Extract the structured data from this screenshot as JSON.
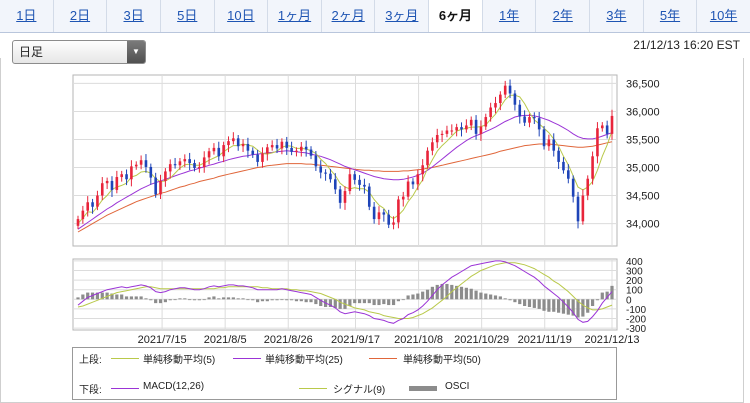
{
  "tabs": [
    {
      "label": "1日",
      "active": false
    },
    {
      "label": "2日",
      "active": false
    },
    {
      "label": "3日",
      "active": false
    },
    {
      "label": "5日",
      "active": false
    },
    {
      "label": "10日",
      "active": false
    },
    {
      "label": "1ヶ月",
      "active": false
    },
    {
      "label": "2ヶ月",
      "active": false
    },
    {
      "label": "3ヶ月",
      "active": false
    },
    {
      "label": "6ヶ月",
      "active": true
    },
    {
      "label": "1年",
      "active": false
    },
    {
      "label": "2年",
      "active": false
    },
    {
      "label": "3年",
      "active": false
    },
    {
      "label": "5年",
      "active": false
    },
    {
      "label": "10年",
      "active": false
    }
  ],
  "chart_type_select": {
    "value": "日足"
  },
  "timestamp": "21/12/13 16:20 EST",
  "legend": {
    "upper_label": "上段:",
    "lower_label": "下段:",
    "upper": [
      {
        "label": "単純移動平均(5)",
        "color": "#b9c94a"
      },
      {
        "label": "単純移動平均(25)",
        "color": "#9b34d6"
      },
      {
        "label": "単純移動平均(50)",
        "color": "#e0663a"
      }
    ],
    "lower": [
      {
        "label": "MACD(12,26)",
        "color": "#9b34d6"
      },
      {
        "label": "シグナル(9)",
        "color": "#b9c94a"
      },
      {
        "label": "OSCI",
        "color": "#8c8c8c"
      }
    ]
  },
  "chart_data": [
    {
      "type": "candlestick",
      "panel": "price",
      "ylim": [
        33600,
        36650
      ],
      "y_ticks": [
        "36,500",
        "36,000",
        "35,500",
        "35,000",
        "34,500",
        "34,000"
      ],
      "y_tick_values": [
        36500,
        36000,
        35500,
        35000,
        34500,
        34000
      ],
      "up_color": "#e8243a",
      "down_color": "#1e44b8",
      "x_labels": [
        "2021/7/15",
        "2021/8/5",
        "2021/8/26",
        "2021/9/17",
        "2021/10/8",
        "2021/10/29",
        "2021/11/19",
        "2021/12/13"
      ],
      "closes": [
        34080,
        34230,
        34380,
        34300,
        34500,
        34720,
        34760,
        34600,
        34830,
        34880,
        34790,
        35020,
        35050,
        35130,
        35010,
        34820,
        34520,
        34760,
        34930,
        35060,
        35040,
        35110,
        35150,
        35080,
        34990,
        35010,
        35180,
        35290,
        35350,
        35200,
        35400,
        35470,
        35520,
        35380,
        35420,
        35300,
        35230,
        35100,
        35250,
        35360,
        35400,
        35340,
        35460,
        35350,
        35280,
        35300,
        35370,
        35320,
        35210,
        35020,
        34910,
        34890,
        34790,
        34610,
        34370,
        34580,
        34880,
        34780,
        34690,
        34660,
        34300,
        34080,
        34200,
        34160,
        33980,
        34020,
        34430,
        34480,
        34750,
        34700,
        34880,
        35040,
        35300,
        35450,
        35580,
        35600,
        35660,
        35660,
        35720,
        35680,
        35750,
        35850,
        35600,
        35730,
        35900,
        36070,
        36150,
        36300,
        36460,
        36320,
        36120,
        35910,
        35800,
        35900,
        35880,
        35680,
        35380,
        35500,
        35300,
        35100,
        34950,
        34800,
        34480,
        34040,
        34500,
        34800,
        35200,
        35700,
        35750,
        35600,
        35920
      ],
      "sma5": [
        34000,
        34100,
        34210,
        34200,
        34300,
        34420,
        34500,
        34610,
        34650,
        34680,
        34720,
        34830,
        34860,
        34920,
        34930,
        34900,
        34800,
        34750,
        34760,
        34810,
        34900,
        34990,
        35050,
        35060,
        35040,
        35040,
        35080,
        35130,
        35170,
        35210,
        35280,
        35340,
        35390,
        35390,
        35420,
        35400,
        35380,
        35310,
        35250,
        35240,
        35260,
        35290,
        35360,
        35390,
        35380,
        35340,
        35340,
        35330,
        35300,
        35250,
        35150,
        35070,
        34960,
        34860,
        34720,
        34650,
        34620,
        34640,
        34620,
        34620,
        34560,
        34430,
        34330,
        34270,
        34140,
        34090,
        34150,
        34240,
        34390,
        34500,
        34650,
        34780,
        34980,
        35140,
        35290,
        35390,
        35470,
        35560,
        35650,
        35680,
        35700,
        35720,
        35720,
        35730,
        35760,
        35860,
        35950,
        36080,
        36210,
        36290,
        36290,
        36260,
        36140,
        35980,
        35850,
        35780,
        35700,
        35620,
        35510,
        35380,
        35200,
        35050,
        34850,
        34650,
        34600,
        34650,
        34750,
        34950,
        35200,
        35400,
        35650
      ],
      "sma25": [
        33900,
        33960,
        34020,
        34080,
        34140,
        34200,
        34260,
        34310,
        34370,
        34420,
        34470,
        34520,
        34570,
        34620,
        34660,
        34700,
        34730,
        34760,
        34790,
        34820,
        34850,
        34880,
        34910,
        34940,
        34960,
        34990,
        35010,
        35040,
        35060,
        35090,
        35110,
        35140,
        35160,
        35180,
        35200,
        35210,
        35230,
        35240,
        35250,
        35260,
        35270,
        35280,
        35290,
        35300,
        35290,
        35280,
        35270,
        35260,
        35240,
        35220,
        35200,
        35170,
        35140,
        35100,
        35060,
        35020,
        34990,
        34960,
        34930,
        34900,
        34870,
        34840,
        34820,
        34800,
        34790,
        34780,
        34780,
        34790,
        34810,
        34830,
        34860,
        34900,
        34950,
        35010,
        35080,
        35150,
        35220,
        35290,
        35360,
        35420,
        35480,
        35530,
        35570,
        35600,
        35640,
        35680,
        35720,
        35770,
        35820,
        35860,
        35900,
        35920,
        35930,
        35930,
        35920,
        35900,
        35870,
        35840,
        35800,
        35760,
        35710,
        35660,
        35600,
        35550,
        35520,
        35510,
        35510,
        35530,
        35560,
        35590,
        35620
      ],
      "sma50": [
        33850,
        33900,
        33950,
        34000,
        34050,
        34100,
        34150,
        34190,
        34230,
        34270,
        34310,
        34350,
        34390,
        34420,
        34450,
        34480,
        34510,
        34540,
        34560,
        34590,
        34620,
        34650,
        34670,
        34700,
        34720,
        34750,
        34770,
        34790,
        34810,
        34840,
        34860,
        34880,
        34900,
        34920,
        34940,
        34960,
        34980,
        35000,
        35010,
        35030,
        35040,
        35050,
        35060,
        35070,
        35070,
        35070,
        35070,
        35060,
        35060,
        35050,
        35040,
        35030,
        35020,
        35010,
        35000,
        34990,
        34980,
        34970,
        34960,
        34950,
        34950,
        34940,
        34940,
        34930,
        34930,
        34930,
        34930,
        34940,
        34940,
        34950,
        34960,
        34970,
        34990,
        35000,
        35020,
        35040,
        35060,
        35080,
        35100,
        35120,
        35140,
        35160,
        35180,
        35200,
        35220,
        35240,
        35260,
        35290,
        35310,
        35330,
        35350,
        35370,
        35390,
        35400,
        35410,
        35420,
        35420,
        35420,
        35410,
        35400,
        35390,
        35380,
        35370,
        35360,
        35360,
        35370,
        35380,
        35400,
        35420,
        35440,
        35460
      ]
    },
    {
      "type": "macd",
      "panel": "oscillator",
      "ylim": [
        -320,
        420
      ],
      "y_ticks": [
        "400",
        "300",
        "200",
        "100",
        "0",
        "-100",
        "-200",
        "-300"
      ],
      "y_tick_values": [
        400,
        300,
        200,
        100,
        0,
        -100,
        -200,
        -300
      ],
      "macd": [
        -60,
        -20,
        20,
        40,
        60,
        80,
        100,
        110,
        120,
        130,
        120,
        130,
        140,
        150,
        140,
        120,
        80,
        70,
        80,
        100,
        110,
        120,
        120,
        110,
        100,
        100,
        110,
        130,
        140,
        130,
        140,
        150,
        150,
        140,
        140,
        130,
        120,
        100,
        100,
        100,
        100,
        100,
        110,
        100,
        90,
        80,
        70,
        60,
        50,
        20,
        -10,
        -40,
        -60,
        -90,
        -130,
        -150,
        -140,
        -130,
        -140,
        -150,
        -170,
        -200,
        -210,
        -220,
        -240,
        -250,
        -220,
        -200,
        -160,
        -140,
        -110,
        -70,
        -20,
        40,
        100,
        150,
        190,
        230,
        260,
        290,
        320,
        350,
        360,
        370,
        380,
        390,
        400,
        400,
        390,
        370,
        350,
        320,
        290,
        260,
        230,
        190,
        140,
        100,
        60,
        20,
        -30,
        -80,
        -140,
        -210,
        -240,
        -230,
        -180,
        -120,
        -40,
        20,
        80
      ],
      "signal": [
        -80,
        -70,
        -50,
        -30,
        -10,
        10,
        30,
        50,
        70,
        80,
        90,
        100,
        110,
        120,
        130,
        130,
        120,
        110,
        110,
        110,
        110,
        110,
        110,
        110,
        110,
        110,
        110,
        110,
        110,
        120,
        120,
        130,
        130,
        130,
        130,
        130,
        130,
        130,
        120,
        120,
        110,
        110,
        110,
        110,
        100,
        100,
        90,
        90,
        80,
        70,
        60,
        40,
        20,
        0,
        -30,
        -50,
        -70,
        -90,
        -100,
        -110,
        -130,
        -140,
        -150,
        -170,
        -180,
        -190,
        -200,
        -200,
        -200,
        -190,
        -170,
        -150,
        -120,
        -90,
        -50,
        -10,
        30,
        80,
        120,
        160,
        200,
        240,
        270,
        300,
        320,
        340,
        360,
        370,
        380,
        380,
        380,
        370,
        360,
        340,
        320,
        290,
        260,
        230,
        190,
        160,
        120,
        80,
        30,
        -20,
        -60,
        -90,
        -110,
        -110,
        -100,
        -80,
        -60
      ],
      "osci": [
        20,
        50,
        70,
        70,
        70,
        70,
        70,
        60,
        50,
        50,
        30,
        30,
        30,
        30,
        10,
        -10,
        -40,
        -40,
        -30,
        -10,
        0,
        10,
        10,
        0,
        -10,
        -10,
        0,
        20,
        30,
        10,
        20,
        20,
        20,
        10,
        10,
        0,
        -10,
        -30,
        -20,
        -20,
        -10,
        -10,
        0,
        -10,
        -10,
        -20,
        -20,
        -30,
        -30,
        -50,
        -70,
        -80,
        -80,
        -90,
        -100,
        -100,
        -70,
        -40,
        -40,
        -40,
        -40,
        -60,
        -60,
        -50,
        -60,
        -60,
        -20,
        0,
        40,
        50,
        60,
        80,
        100,
        130,
        150,
        160,
        160,
        150,
        140,
        130,
        120,
        110,
        90,
        70,
        60,
        50,
        40,
        30,
        10,
        -10,
        -30,
        -50,
        -70,
        -80,
        -90,
        -100,
        -120,
        -130,
        -130,
        -140,
        -150,
        -160,
        -170,
        -190,
        -180,
        -140,
        -70,
        -10,
        70,
        80,
        140
      ]
    }
  ]
}
